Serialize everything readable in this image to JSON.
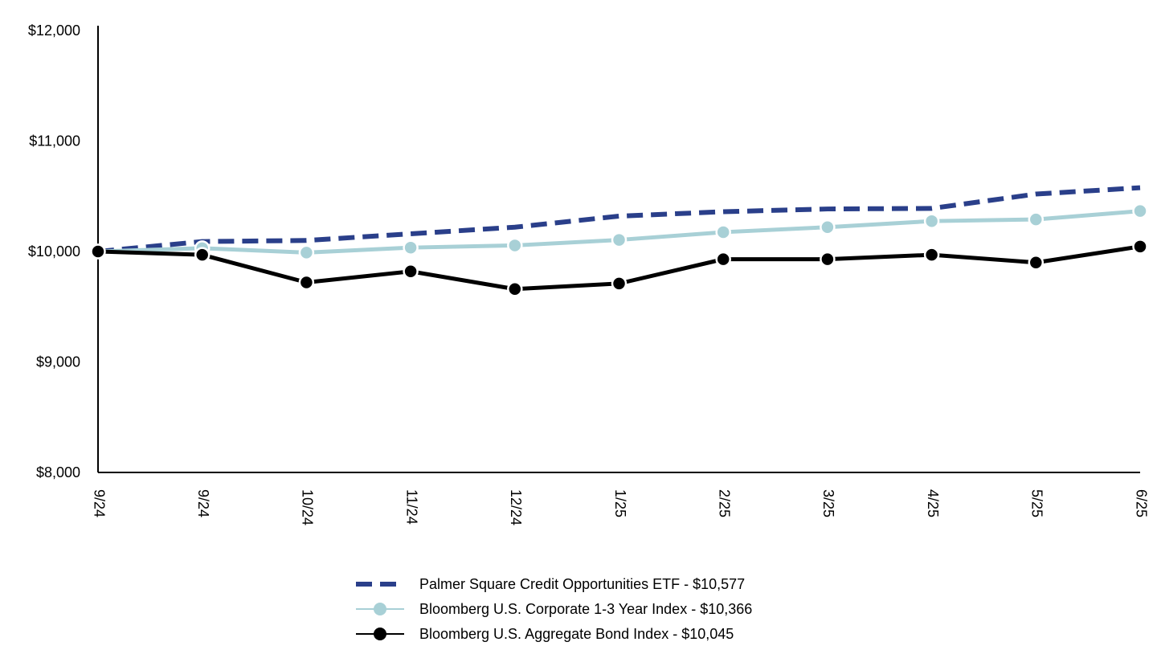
{
  "chart_data": {
    "type": "line",
    "title": "",
    "xlabel": "",
    "ylabel": "",
    "categories": [
      "9/24",
      "9/24",
      "10/24",
      "11/24",
      "12/24",
      "1/25",
      "2/25",
      "3/25",
      "4/25",
      "5/25",
      "6/25"
    ],
    "ylim": [
      8000,
      12000
    ],
    "yticks": [
      8000,
      9000,
      10000,
      11000,
      12000
    ],
    "ytick_labels": [
      "$8,000",
      "$9,000",
      "$10,000",
      "$11,000",
      "$12,000"
    ],
    "grid": false,
    "legend_position": "bottom-center",
    "series": [
      {
        "name": "Palmer Square Credit Opportunities ETF - $10,577",
        "color": "#2a3f8a",
        "style": "dashed",
        "markers": false,
        "values": [
          10000,
          10090,
          10100,
          10160,
          10220,
          10320,
          10360,
          10385,
          10390,
          10520,
          10577
        ]
      },
      {
        "name": "Bloomberg U.S. Corporate 1-3 Year Index - $10,366",
        "color": "#a8d0d6",
        "style": "solid",
        "markers": true,
        "values": [
          10000,
          10030,
          9990,
          10035,
          10055,
          10105,
          10175,
          10220,
          10275,
          10290,
          10366
        ]
      },
      {
        "name": "Bloomberg U.S. Aggregate Bond Index - $10,045",
        "color": "#000000",
        "style": "solid",
        "markers": true,
        "values": [
          10000,
          9970,
          9720,
          9820,
          9660,
          9710,
          9930,
          9930,
          9970,
          9900,
          10045
        ]
      }
    ]
  }
}
